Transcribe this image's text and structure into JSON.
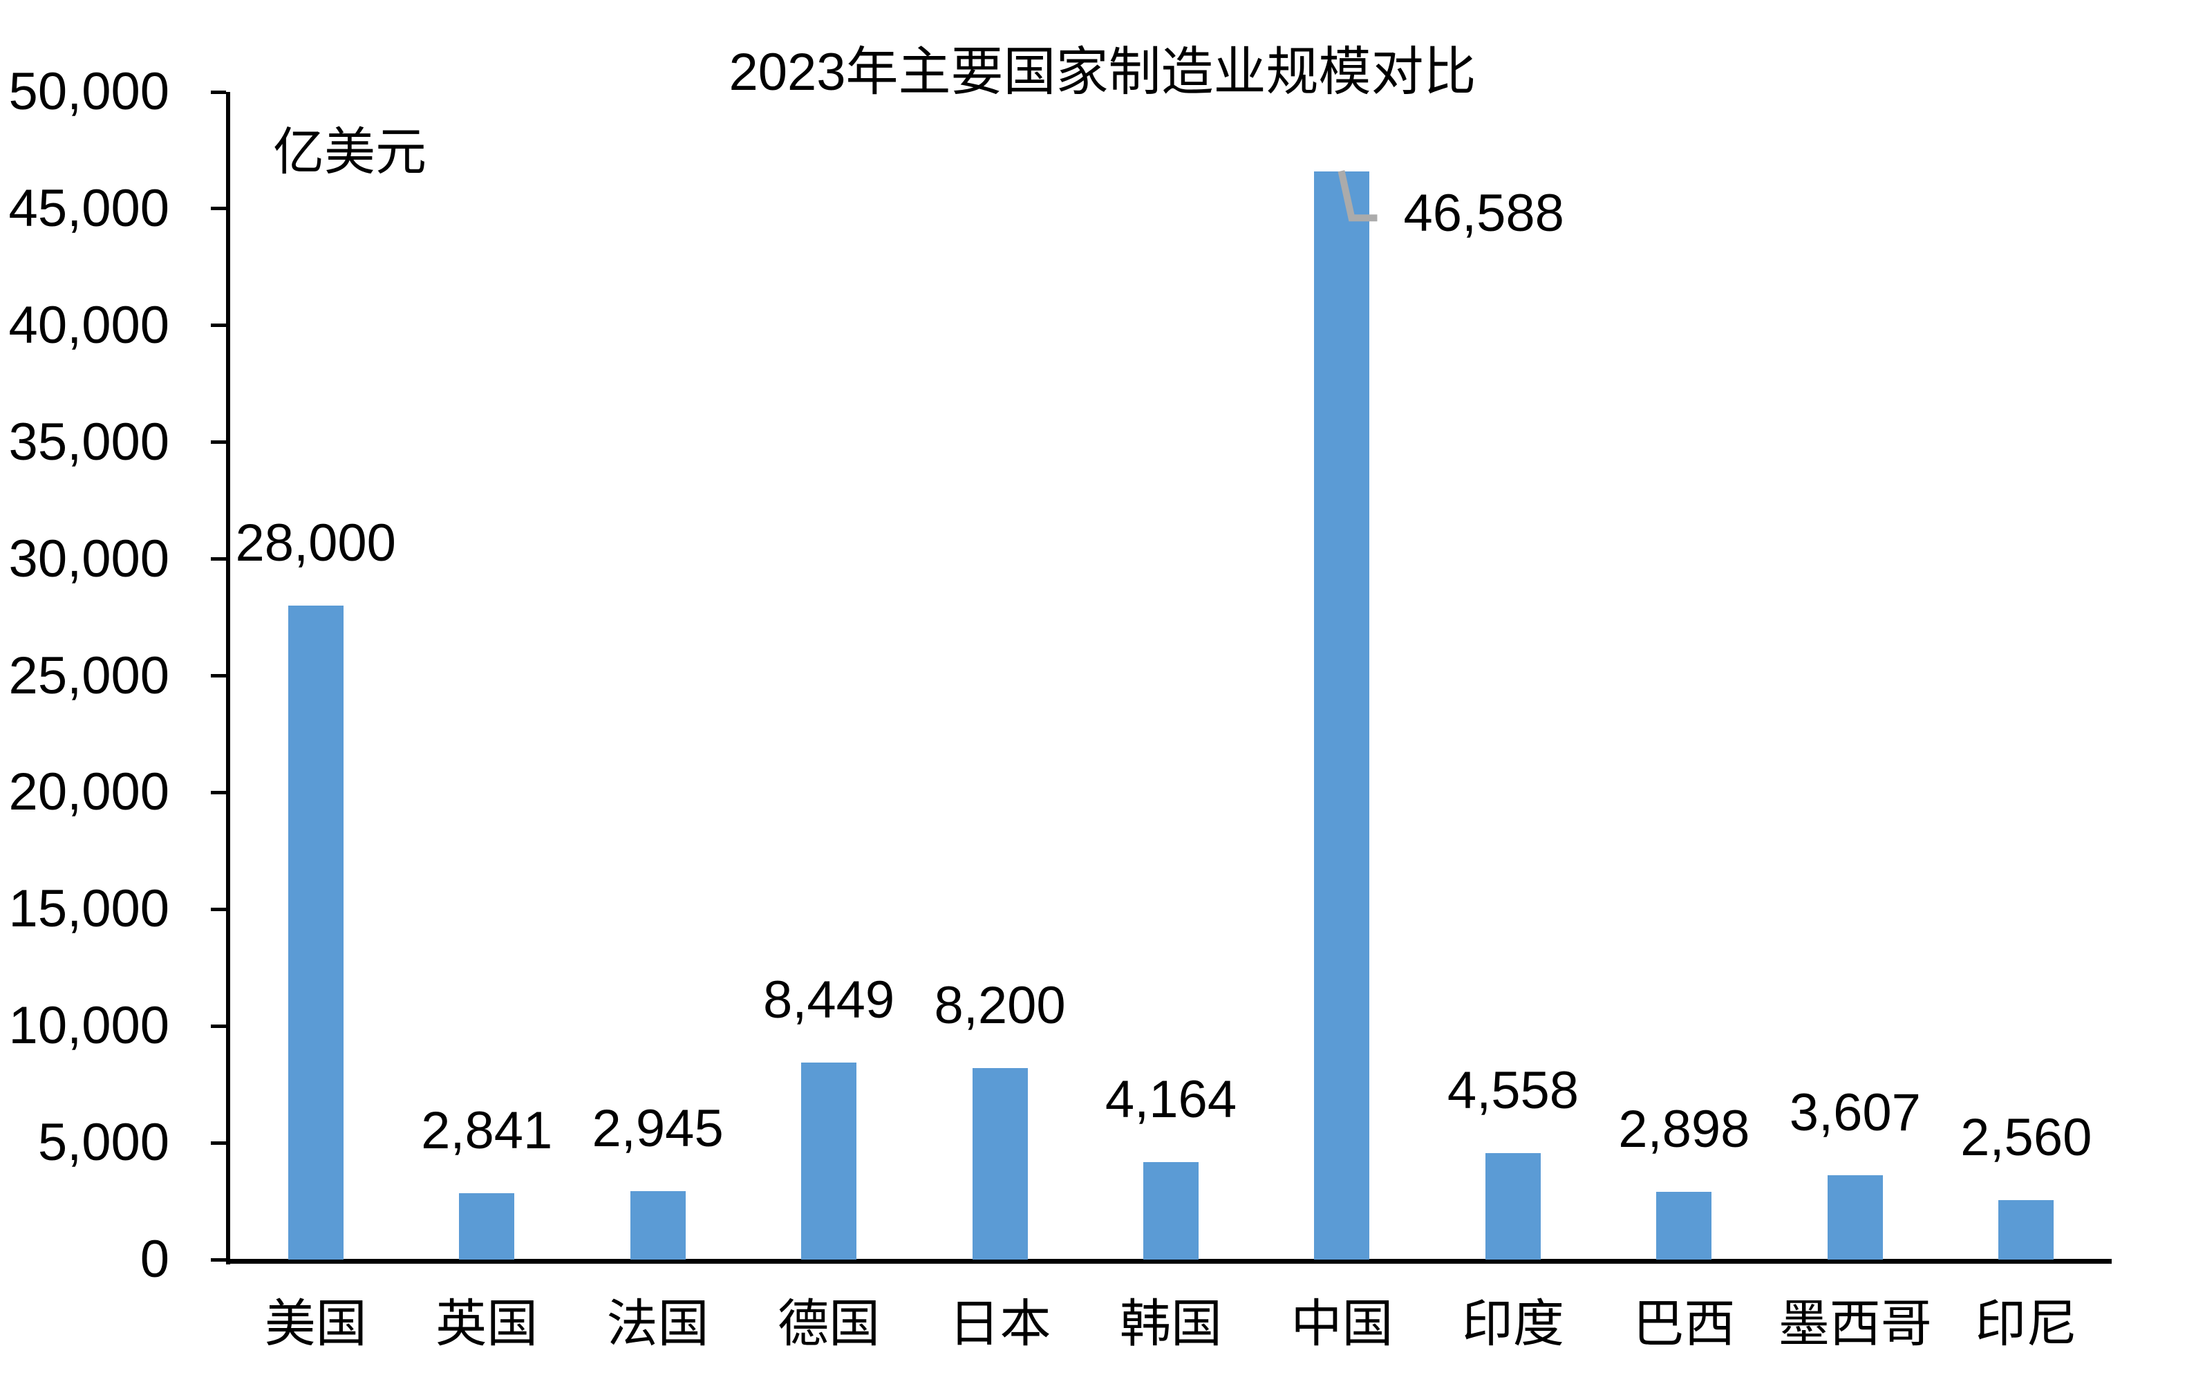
{
  "chart_data": {
    "type": "bar",
    "title": "2023年主要国家制造业规模对比",
    "ylabel": "亿美元",
    "xlabel": "",
    "categories": [
      "美国",
      "英国",
      "法国",
      "德国",
      "日本",
      "韩国",
      "中国",
      "印度",
      "巴西",
      "墨西哥",
      "印尼"
    ],
    "values": [
      28000,
      2841,
      2945,
      8449,
      8200,
      4164,
      46588,
      4558,
      2898,
      3607,
      2560
    ],
    "value_labels": [
      "28,000",
      "2,841",
      "2,945",
      "8,449",
      "8,200",
      "4,164",
      "46,588",
      "4,558",
      "2,898",
      "3,607",
      "2,560"
    ],
    "ylim": [
      0,
      50000
    ],
    "ytick_step": 5000,
    "ytick_labels": [
      "0",
      "5,000",
      "10,000",
      "15,000",
      "20,000",
      "25,000",
      "30,000",
      "35,000",
      "40,000",
      "45,000",
      "50,000"
    ],
    "grid": false,
    "legend": "none",
    "bar_color": "#5B9BD5",
    "axis_color": "#000000",
    "text_color": "#000000",
    "callout": {
      "category": "中国",
      "label": "46,588",
      "line_color": "#ABABAB"
    }
  }
}
